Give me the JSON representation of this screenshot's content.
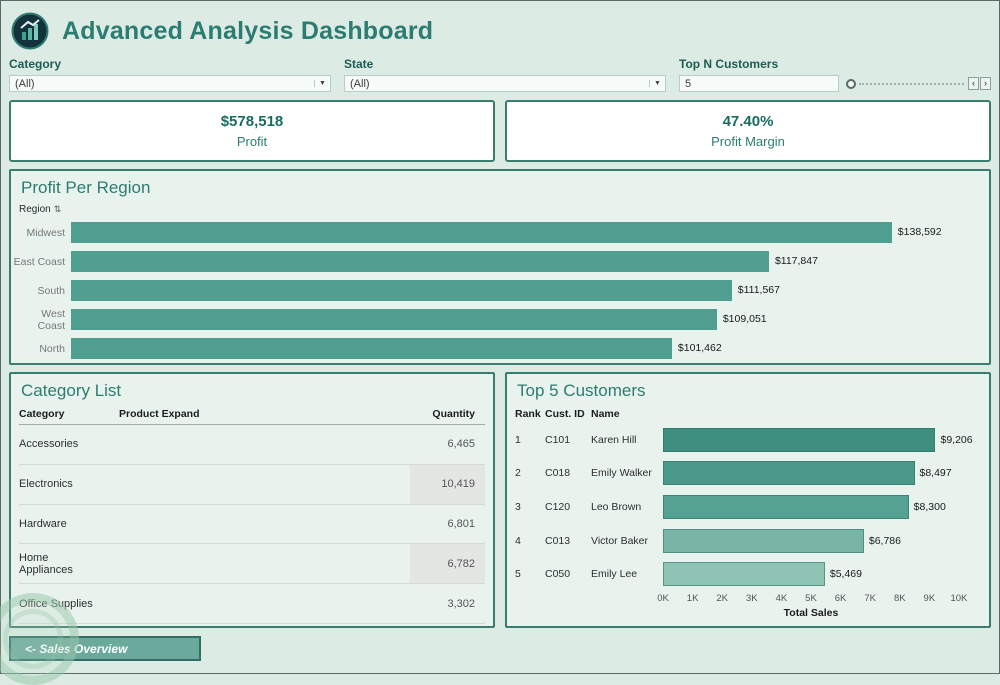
{
  "header": {
    "title": "Advanced Analysis Dashboard"
  },
  "filters": {
    "category": {
      "label": "Category",
      "value": "(All)"
    },
    "state": {
      "label": "State",
      "value": "(All)"
    },
    "top_n": {
      "label": "Top N Customers",
      "value": "5"
    }
  },
  "kpis": {
    "profit": {
      "value": "$578,518",
      "label": "Profit"
    },
    "profit_margin": {
      "value": "47.40%",
      "label": "Profit Margin"
    }
  },
  "region_panel": {
    "title": "Profit Per Region",
    "axis_header": "Region"
  },
  "category_panel": {
    "title": "Category List",
    "columns": {
      "category": "Category",
      "product": "Product Expand",
      "quantity": "Quantity"
    },
    "rows": [
      {
        "category": "Accessories",
        "product": "",
        "quantity": "6,465"
      },
      {
        "category": "Electronics",
        "product": "",
        "quantity": "10,419"
      },
      {
        "category": "Hardware",
        "product": "",
        "quantity": "6,801"
      },
      {
        "category": "Home Appliances",
        "product": "",
        "quantity": "6,782"
      },
      {
        "category": "Office Supplies",
        "product": "",
        "quantity": "3,302"
      }
    ]
  },
  "customers_panel": {
    "title": "Top 5 Customers",
    "columns": {
      "rank": "Rank",
      "cust_id": "Cust. ID",
      "name": "Name"
    }
  },
  "chart_data": [
    {
      "type": "bar",
      "title": "Profit Per Region",
      "orientation": "horizontal",
      "categories": [
        "Midwest",
        "East Coast",
        "South",
        "West Coast",
        "North"
      ],
      "values": [
        138592,
        117847,
        111567,
        109051,
        101462
      ],
      "value_labels": [
        "$138,592",
        "$117,847",
        "$111,567",
        "$109,051",
        "$101,462"
      ],
      "bar_color": "#4f9e90",
      "xlim": [
        0,
        150000
      ],
      "sort": "descending",
      "axis_label": "Region"
    },
    {
      "type": "bar",
      "title": "Top 5 Customers",
      "orientation": "horizontal",
      "rows": [
        {
          "rank": "1",
          "cust_id": "C101",
          "name": "Karen Hill",
          "value": 9206,
          "label": "$9,206",
          "color": "#3f8f81"
        },
        {
          "rank": "2",
          "cust_id": "C018",
          "name": "Emily Walker",
          "value": 8497,
          "label": "$8,497",
          "color": "#4b998b"
        },
        {
          "rank": "3",
          "cust_id": "C120",
          "name": "Leo Brown",
          "value": 8300,
          "label": "$8,300",
          "color": "#55a192"
        },
        {
          "rank": "4",
          "cust_id": "C013",
          "name": "Victor Baker",
          "value": 6786,
          "label": "$6,786",
          "color": "#78b5a6"
        },
        {
          "rank": "5",
          "cust_id": "C050",
          "name": "Emily Lee",
          "value": 5469,
          "label": "$5,469",
          "color": "#8ec4b4"
        }
      ],
      "xticks": [
        "0K",
        "1K",
        "2K",
        "3K",
        "4K",
        "5K",
        "6K",
        "7K",
        "8K",
        "9K",
        "10K"
      ],
      "xlim": [
        0,
        10000
      ],
      "xlabel": "Total Sales"
    }
  ],
  "footer": {
    "back_button": "<- Sales Overview"
  },
  "colors": {
    "accent": "#2d7c71",
    "panel_border": "#3a7c70",
    "region_bar": "#4f9e90",
    "kpi_text": "#1a6b60",
    "button_bg": "#6ca99d"
  }
}
